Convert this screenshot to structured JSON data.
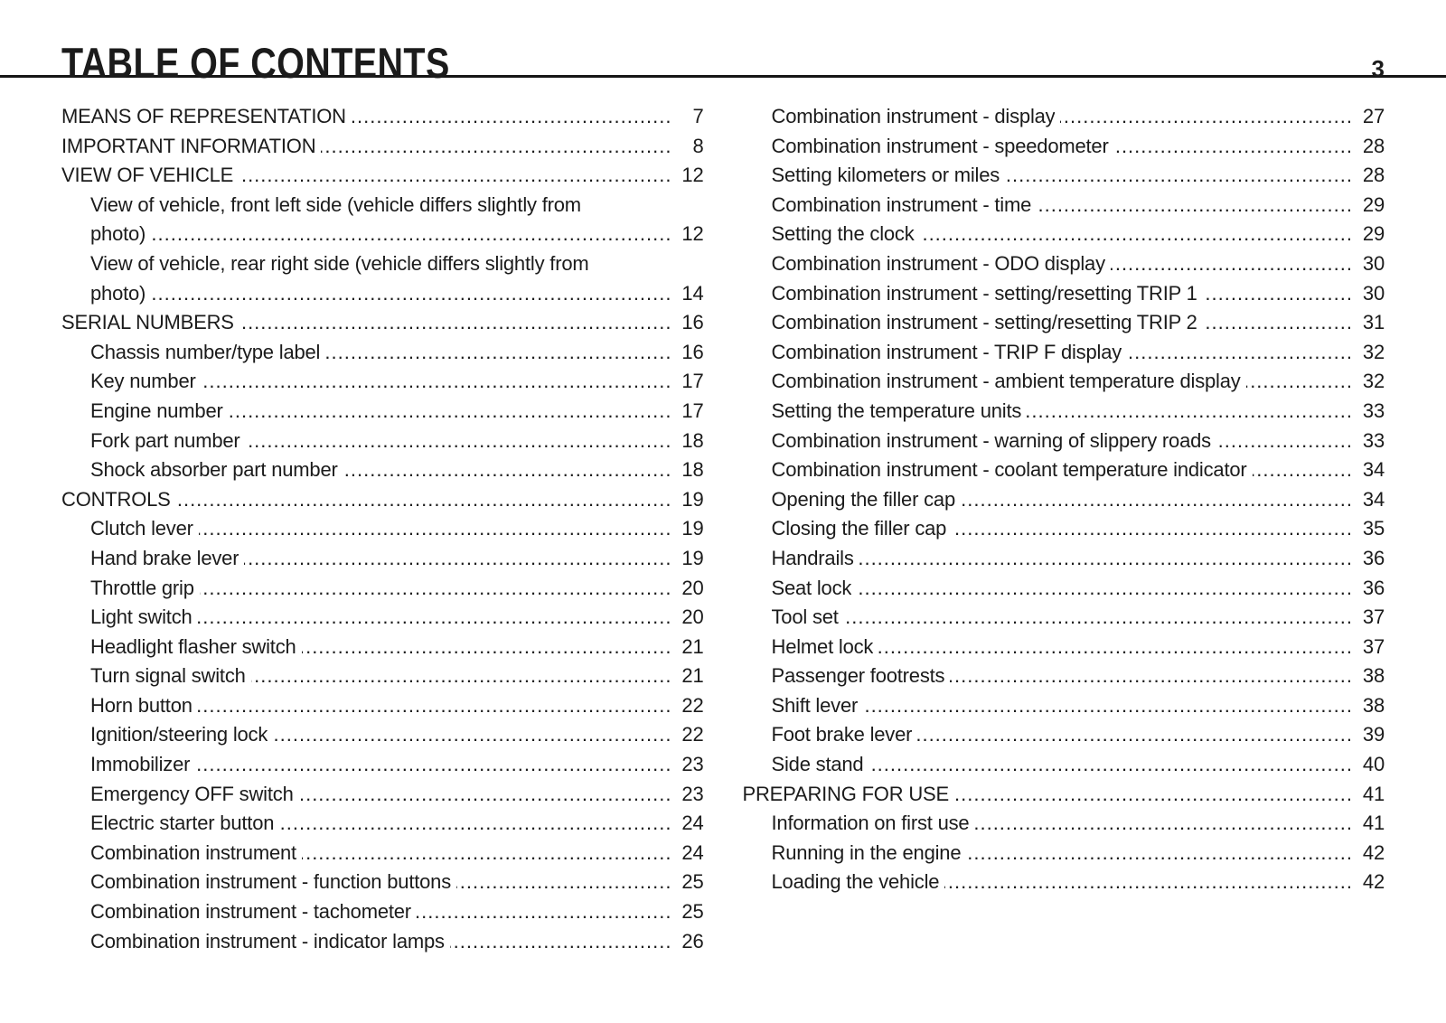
{
  "header": {
    "title": "TABLE OF CONTENTS",
    "page_number": "3"
  },
  "colors": {
    "background": "#ffffff",
    "text": "#1b1b1b",
    "rule": "#161616"
  },
  "toc": {
    "left": [
      {
        "text": "MEANS OF REPRESENTATION",
        "page": "7",
        "indent": 0
      },
      {
        "text": "IMPORTANT INFORMATION",
        "page": "8",
        "indent": 0
      },
      {
        "text": "VIEW OF VEHICLE",
        "page": "12",
        "indent": 0
      },
      {
        "text": "View of vehicle, front left side (vehicle differs slightly from",
        "page": "",
        "indent": 1
      },
      {
        "text": "photo)",
        "page": "12",
        "indent": 1
      },
      {
        "text": "View of vehicle, rear right side (vehicle differs slightly from",
        "page": "",
        "indent": 1
      },
      {
        "text": "photo)",
        "page": "14",
        "indent": 1
      },
      {
        "text": "SERIAL NUMBERS",
        "page": "16",
        "indent": 0
      },
      {
        "text": "Chassis number/type label",
        "page": "16",
        "indent": 1
      },
      {
        "text": "Key number",
        "page": "17",
        "indent": 1
      },
      {
        "text": "Engine number",
        "page": "17",
        "indent": 1
      },
      {
        "text": "Fork part number",
        "page": "18",
        "indent": 1
      },
      {
        "text": "Shock absorber part number",
        "page": "18",
        "indent": 1
      },
      {
        "text": "CONTROLS",
        "page": "19",
        "indent": 0
      },
      {
        "text": "Clutch lever",
        "page": "19",
        "indent": 1
      },
      {
        "text": "Hand brake lever",
        "page": "19",
        "indent": 1
      },
      {
        "text": "Throttle grip",
        "page": "20",
        "indent": 1
      },
      {
        "text": "Light switch",
        "page": "20",
        "indent": 1
      },
      {
        "text": "Headlight flasher switch",
        "page": "21",
        "indent": 1
      },
      {
        "text": "Turn signal switch",
        "page": "21",
        "indent": 1
      },
      {
        "text": "Horn button",
        "page": "22",
        "indent": 1
      },
      {
        "text": "Ignition/steering lock",
        "page": "22",
        "indent": 1
      },
      {
        "text": "Immobilizer",
        "page": "23",
        "indent": 1
      },
      {
        "text": "Emergency OFF switch",
        "page": "23",
        "indent": 1
      },
      {
        "text": "Electric starter button",
        "page": "24",
        "indent": 1
      },
      {
        "text": "Combination instrument",
        "page": "24",
        "indent": 1
      },
      {
        "text": "Combination instrument - function buttons",
        "page": "25",
        "indent": 1
      },
      {
        "text": "Combination instrument - tachometer",
        "page": "25",
        "indent": 1
      },
      {
        "text": "Combination instrument - indicator lamps",
        "page": "26",
        "indent": 1
      }
    ],
    "right": [
      {
        "text": "Combination instrument - display",
        "page": "27",
        "indent": 1
      },
      {
        "text": "Combination instrument - speedometer",
        "page": "28",
        "indent": 1
      },
      {
        "text": "Setting kilometers or miles",
        "page": "28",
        "indent": 1
      },
      {
        "text": "Combination instrument - time",
        "page": "29",
        "indent": 1
      },
      {
        "text": "Setting the clock",
        "page": "29",
        "indent": 1
      },
      {
        "text": "Combination instrument - ODO display",
        "page": "30",
        "indent": 1
      },
      {
        "text": "Combination instrument - setting/resetting TRIP 1",
        "page": "30",
        "indent": 1
      },
      {
        "text": "Combination instrument - setting/resetting TRIP 2",
        "page": "31",
        "indent": 1
      },
      {
        "text": "Combination instrument - TRIP F display",
        "page": "32",
        "indent": 1
      },
      {
        "text": "Combination instrument - ambient temperature display",
        "page": "32",
        "indent": 1
      },
      {
        "text": "Setting the temperature units",
        "page": "33",
        "indent": 1
      },
      {
        "text": "Combination instrument - warning of slippery roads",
        "page": "33",
        "indent": 1
      },
      {
        "text": "Combination instrument - coolant temperature indicator",
        "page": "34",
        "indent": 1
      },
      {
        "text": "Opening the filler cap",
        "page": "34",
        "indent": 1
      },
      {
        "text": "Closing the filler cap",
        "page": "35",
        "indent": 1
      },
      {
        "text": "Handrails",
        "page": "36",
        "indent": 1
      },
      {
        "text": "Seat lock",
        "page": "36",
        "indent": 1
      },
      {
        "text": "Tool set",
        "page": "37",
        "indent": 1
      },
      {
        "text": "Helmet lock",
        "page": "37",
        "indent": 1
      },
      {
        "text": "Passenger footrests",
        "page": "38",
        "indent": 1
      },
      {
        "text": "Shift lever",
        "page": "38",
        "indent": 1
      },
      {
        "text": "Foot brake lever",
        "page": "39",
        "indent": 1
      },
      {
        "text": "Side stand",
        "page": "40",
        "indent": 1
      },
      {
        "text": "PREPARING FOR USE",
        "page": "41",
        "indent": 0
      },
      {
        "text": "Information on first use",
        "page": "41",
        "indent": 1
      },
      {
        "text": "Running in the engine",
        "page": "42",
        "indent": 1
      },
      {
        "text": "Loading the vehicle",
        "page": "42",
        "indent": 1
      }
    ]
  }
}
